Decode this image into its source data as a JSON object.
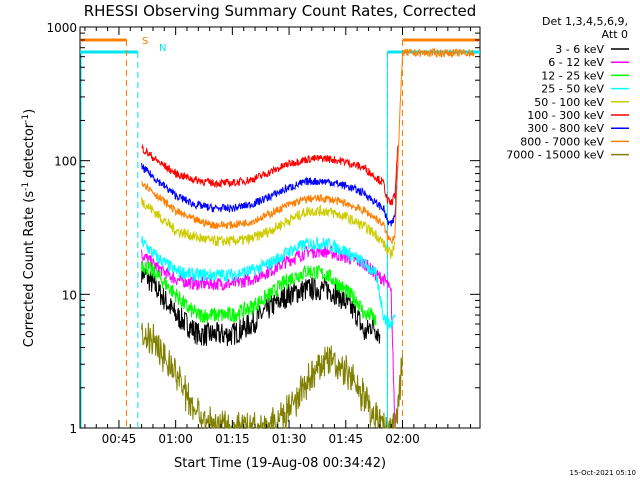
{
  "chart_data": {
    "type": "line",
    "title": "RHESSI Observing Summary Count Rates, Corrected",
    "xlabel": "Start Time (19-Aug-08 00:34:42)",
    "ylabel_main": "Corrected Count Rate (s",
    "ylabel_sup1": "-1",
    "ylabel_mid": " detector",
    "ylabel_sup2": "-1",
    "ylabel_end": ")",
    "yscale": "log",
    "ylim": [
      1,
      1000
    ],
    "ytick_values": [
      1,
      10,
      100,
      1000
    ],
    "ytick_labels": [
      "1",
      "10",
      "100",
      "1000"
    ],
    "xlim_minutes": [
      34.7,
      140.5
    ],
    "xtick_minutes": [
      45,
      60,
      75,
      90,
      105,
      120
    ],
    "xtick_labels": [
      "00:45",
      "01:00",
      "01:15",
      "01:30",
      "01:45",
      "02:00"
    ],
    "legend_header": [
      "Det 1,3,4,5,6,9,",
      "Att 0"
    ],
    "saa_label": "S",
    "night_label": "N",
    "saa_color": "#ff7f00",
    "night_color": "#00e5ee",
    "series": [
      {
        "name": "3 - 6 keV",
        "color": "#000000",
        "x": [
          51,
          55,
          60,
          63,
          66,
          70,
          75,
          80,
          85,
          90,
          95,
          100,
          103,
          106,
          108,
          110,
          112,
          114
        ],
        "y": [
          15,
          11,
          7,
          6,
          5,
          5,
          5,
          6,
          8,
          10,
          11,
          11,
          10,
          8,
          7,
          5,
          6,
          5
        ]
      },
      {
        "name": "6 - 12 keV",
        "color": "#ff00ff",
        "x": [
          51,
          55,
          60,
          65,
          70,
          75,
          80,
          85,
          90,
          95,
          100,
          105,
          110,
          113,
          115,
          116,
          117,
          118
        ],
        "y": [
          20,
          16,
          13,
          12,
          12,
          12,
          13,
          15,
          18,
          21,
          21,
          19,
          17,
          14,
          13,
          12,
          10,
          1
        ]
      },
      {
        "name": "12 - 25 keV",
        "color": "#00ff00",
        "x": [
          51,
          55,
          60,
          63,
          66,
          70,
          75,
          80,
          85,
          90,
          95,
          100,
          103,
          106,
          108,
          110,
          112,
          113
        ],
        "y": [
          17,
          14,
          10,
          8,
          7,
          7,
          7,
          8,
          10,
          13,
          15,
          14,
          12,
          10,
          9,
          7,
          7,
          6
        ]
      },
      {
        "name": "25 - 50 keV",
        "color": "#00ffff",
        "x": [
          51,
          55,
          60,
          65,
          70,
          75,
          80,
          85,
          90,
          95,
          100,
          105,
          110,
          113,
          115,
          116,
          117,
          118
        ],
        "y": [
          25,
          19,
          15,
          14,
          14,
          14,
          15,
          17,
          21,
          24,
          24,
          21,
          17,
          14,
          7,
          6,
          6,
          7
        ]
      },
      {
        "name": "50 - 100 keV",
        "color": "#cccc00",
        "x": [
          51,
          55,
          60,
          65,
          70,
          75,
          80,
          85,
          90,
          95,
          100,
          105,
          110,
          113,
          115,
          116,
          117,
          118
        ],
        "y": [
          50,
          40,
          30,
          27,
          25,
          25,
          26,
          30,
          36,
          42,
          42,
          38,
          32,
          28,
          24,
          21,
          20,
          24
        ]
      },
      {
        "name": "100 - 300 keV",
        "color": "#ff0000",
        "x": [
          51,
          55,
          60,
          65,
          70,
          75,
          80,
          85,
          90,
          95,
          100,
          105,
          110,
          113,
          115,
          116,
          117,
          118,
          118.8
        ],
        "y": [
          125,
          100,
          80,
          72,
          68,
          68,
          72,
          82,
          95,
          103,
          104,
          98,
          88,
          75,
          68,
          50,
          48,
          55,
          130
        ]
      },
      {
        "name": "300 - 800 keV",
        "color": "#0000ff",
        "x": [
          51,
          55,
          60,
          65,
          70,
          75,
          80,
          85,
          90,
          95,
          100,
          105,
          110,
          113,
          115,
          116,
          117,
          118,
          118.8
        ],
        "y": [
          90,
          72,
          55,
          47,
          44,
          44,
          47,
          54,
          63,
          70,
          70,
          65,
          57,
          48,
          44,
          35,
          33,
          38,
          95
        ]
      },
      {
        "name": "800 - 7000 keV",
        "color": "#ff7f00",
        "x": [
          51,
          55,
          60,
          65,
          70,
          75,
          80,
          85,
          90,
          95,
          100,
          105,
          110,
          113,
          115,
          116,
          117,
          118,
          120,
          139
        ],
        "y": [
          70,
          55,
          42,
          36,
          33,
          33,
          35,
          40,
          47,
          52,
          52,
          48,
          42,
          37,
          33,
          27,
          25,
          28,
          640,
          640
        ]
      },
      {
        "name": "7000 - 15000 keV",
        "color": "#808000",
        "x": [
          51,
          55,
          57,
          60,
          63,
          66,
          70,
          75,
          80,
          85,
          90,
          95,
          100,
          105,
          110,
          113,
          115,
          116,
          117,
          118,
          119,
          120
        ],
        "y": [
          4.8,
          4.3,
          3.4,
          2.5,
          1.8,
          1.3,
          1,
          1,
          1,
          1,
          1.3,
          2.2,
          3.3,
          2.7,
          1.7,
          1.2,
          1,
          1,
          1,
          1,
          1.5,
          3.5
        ]
      }
    ],
    "saa_flag": {
      "x": [
        34.7,
        47,
        120,
        140.5
      ],
      "y": [
        800,
        800,
        800,
        800
      ]
    },
    "night_flag": {
      "x": [
        34.7,
        50,
        116,
        140.5
      ],
      "y": [
        650,
        650,
        650,
        650
      ]
    }
  },
  "timestamp": "15-Oct-2021 05:10"
}
